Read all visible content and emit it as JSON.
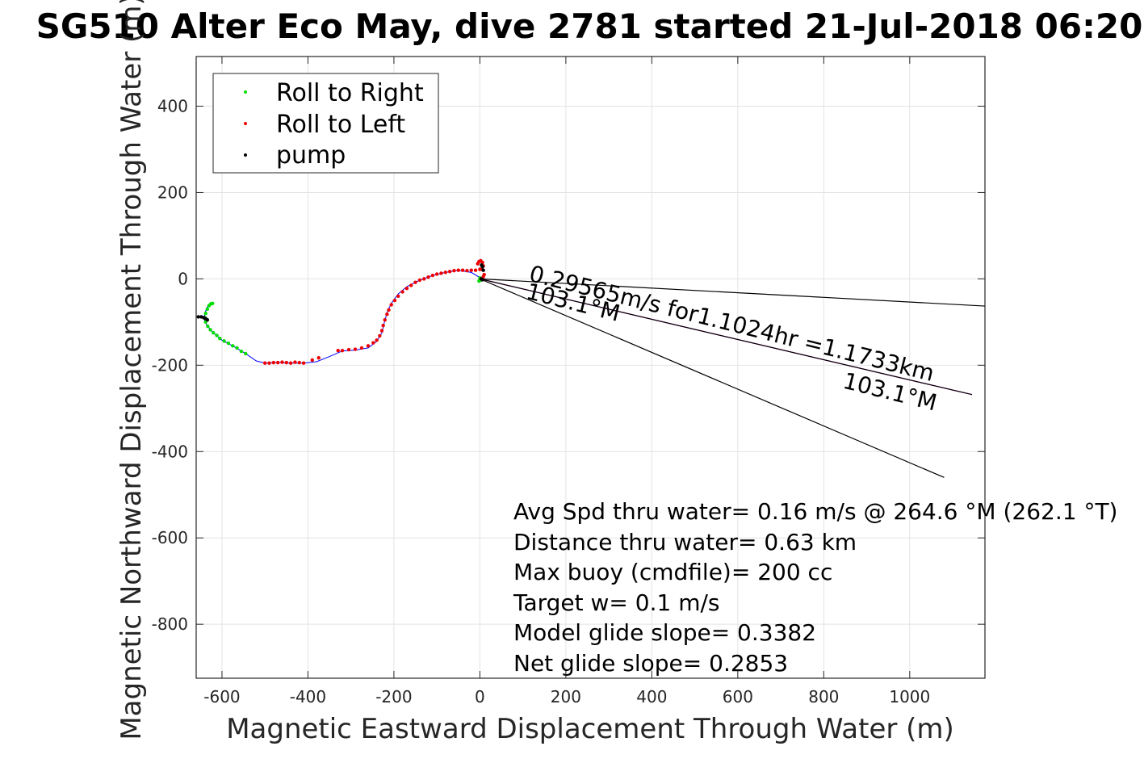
{
  "chart_data": {
    "type": "scatter",
    "title": "SG510 Alter Eco May, dive 2781 started 21-Jul-2018 06:20",
    "xlabel": "Magnetic Eastward Displacement Through Water (m)",
    "ylabel": "Magnetic Northward Displacement Through Water (m)",
    "xlim": [
      -660,
      1175
    ],
    "ylim": [
      -925,
      515
    ],
    "xticks": [
      -600,
      -400,
      -200,
      0,
      200,
      400,
      600,
      800,
      1000
    ],
    "yticks": [
      -800,
      -600,
      -400,
      -200,
      0,
      200,
      400
    ],
    "grid": true,
    "legend": {
      "placement": "top-left",
      "entries": [
        {
          "label": "Roll to Right",
          "color": "#00dd00"
        },
        {
          "label": "Roll to Left",
          "color": "#ee0000"
        },
        {
          "label": "pump",
          "color": "#000000"
        }
      ]
    },
    "track_color": "#0000ff",
    "track": [
      [
        5,
        0
      ],
      [
        -20,
        15
      ],
      [
        -50,
        20
      ],
      [
        -80,
        15
      ],
      [
        -110,
        8
      ],
      [
        -140,
        -3
      ],
      [
        -170,
        -18
      ],
      [
        -190,
        -35
      ],
      [
        -205,
        -55
      ],
      [
        -215,
        -75
      ],
      [
        -222,
        -100
      ],
      [
        -228,
        -125
      ],
      [
        -240,
        -145
      ],
      [
        -260,
        -160
      ],
      [
        -290,
        -165
      ],
      [
        -320,
        -167
      ],
      [
        -350,
        -180
      ],
      [
        -380,
        -192
      ],
      [
        -410,
        -195
      ],
      [
        -440,
        -195
      ],
      [
        -470,
        -194
      ],
      [
        -500,
        -195
      ],
      [
        -520,
        -190
      ],
      [
        -545,
        -173
      ],
      [
        -570,
        -158
      ],
      [
        -600,
        -142
      ],
      [
        -620,
        -125
      ],
      [
        -635,
        -108
      ],
      [
        -642,
        -92
      ],
      [
        -638,
        -75
      ],
      [
        -632,
        -60
      ],
      [
        -625,
        -57
      ]
    ],
    "series": [
      {
        "name": "Roll to Right",
        "color": "#00dd00",
        "points": [
          [
            -545,
            -173
          ],
          [
            -555,
            -168
          ],
          [
            -565,
            -160
          ],
          [
            -575,
            -155
          ],
          [
            -585,
            -149
          ],
          [
            -595,
            -144
          ],
          [
            -605,
            -138
          ],
          [
            -612,
            -131
          ],
          [
            -620,
            -125
          ],
          [
            -627,
            -118
          ],
          [
            -633,
            -110
          ],
          [
            -638,
            -100
          ],
          [
            -640,
            -90
          ],
          [
            -638,
            -80
          ],
          [
            -634,
            -70
          ],
          [
            -630,
            -62
          ],
          [
            -626,
            -58
          ],
          [
            -622,
            -57
          ],
          [
            -2,
            -5
          ],
          [
            2,
            -3
          ],
          [
            5,
            -2
          ],
          [
            0,
            2
          ]
        ]
      },
      {
        "name": "Roll to Left",
        "color": "#ee0000",
        "points": [
          [
            -500,
            -195
          ],
          [
            -490,
            -195
          ],
          [
            -480,
            -194
          ],
          [
            -470,
            -194
          ],
          [
            -460,
            -193
          ],
          [
            -450,
            -194
          ],
          [
            -440,
            -195
          ],
          [
            -430,
            -193
          ],
          [
            -420,
            -194
          ],
          [
            -410,
            -195
          ],
          [
            -390,
            -188
          ],
          [
            -375,
            -183
          ],
          [
            -330,
            -166
          ],
          [
            -320,
            -166
          ],
          [
            -305,
            -164
          ],
          [
            -290,
            -163
          ],
          [
            -275,
            -160
          ],
          [
            -260,
            -155
          ],
          [
            -248,
            -148
          ],
          [
            -240,
            -142
          ],
          [
            -233,
            -132
          ],
          [
            -228,
            -120
          ],
          [
            -225,
            -108
          ],
          [
            -221,
            -95
          ],
          [
            -216,
            -82
          ],
          [
            -212,
            -72
          ],
          [
            -206,
            -60
          ],
          [
            -198,
            -50
          ],
          [
            -190,
            -40
          ],
          [
            -180,
            -30
          ],
          [
            -170,
            -22
          ],
          [
            -160,
            -15
          ],
          [
            -150,
            -8
          ],
          [
            -140,
            -3
          ],
          [
            -130,
            0
          ],
          [
            -120,
            4
          ],
          [
            -110,
            8
          ],
          [
            -100,
            11
          ],
          [
            -90,
            13
          ],
          [
            -80,
            15
          ],
          [
            -70,
            17
          ],
          [
            -60,
            19
          ],
          [
            -50,
            20
          ],
          [
            -40,
            20
          ],
          [
            -30,
            19
          ],
          [
            -20,
            20
          ],
          [
            -10,
            20
          ],
          [
            0,
            22
          ],
          [
            -5,
            35
          ],
          [
            -2,
            40
          ],
          [
            2,
            42
          ],
          [
            6,
            38
          ],
          [
            8,
            30
          ],
          [
            5,
            22
          ],
          [
            10,
            10
          ],
          [
            8,
            5
          ]
        ]
      },
      {
        "name": "pump",
        "color": "#000000",
        "points": [
          [
            -655,
            -88
          ],
          [
            -648,
            -88
          ],
          [
            -642,
            -90
          ],
          [
            -638,
            -92
          ],
          [
            -634,
            -95
          ],
          [
            4,
            32
          ],
          [
            6,
            28
          ],
          [
            8,
            20
          ],
          [
            6,
            -2
          ],
          [
            3,
            0
          ]
        ]
      }
    ],
    "lines": [
      {
        "color": "#000000",
        "points": [
          [
            0,
            0
          ],
          [
            1175,
            -63
          ]
        ]
      },
      {
        "color": "#000000",
        "points": [
          [
            0,
            0
          ],
          [
            1080,
            -460
          ]
        ]
      },
      {
        "color": "#cc00cc",
        "points": [
          [
            0,
            0
          ],
          [
            1145,
            -268
          ]
        ]
      },
      {
        "color": "#000000",
        "points": [
          [
            0,
            0
          ],
          [
            1145,
            -268
          ]
        ]
      }
    ],
    "annotations": [
      {
        "text": "0.29565m/s for1.1024hr =1.1733km",
        "x": 112,
        "y": -4,
        "angle": 14
      },
      {
        "text": "103.1°M",
        "x": 105,
        "y": -45,
        "angle": 14
      },
      {
        "text": "103.1°M",
        "x": 842,
        "y": -252,
        "angle": 14
      }
    ],
    "stats": [
      "Avg Spd thru water=  0.16 m/s @ 264.6 °M (262.1 °T)",
      "Distance thru water=  0.63 km",
      "Max buoy (cmdfile)= 200 cc",
      "Target w= 0.1 m/s",
      "Model glide slope= 0.3382",
      "Net glide slope= 0.2853"
    ]
  }
}
